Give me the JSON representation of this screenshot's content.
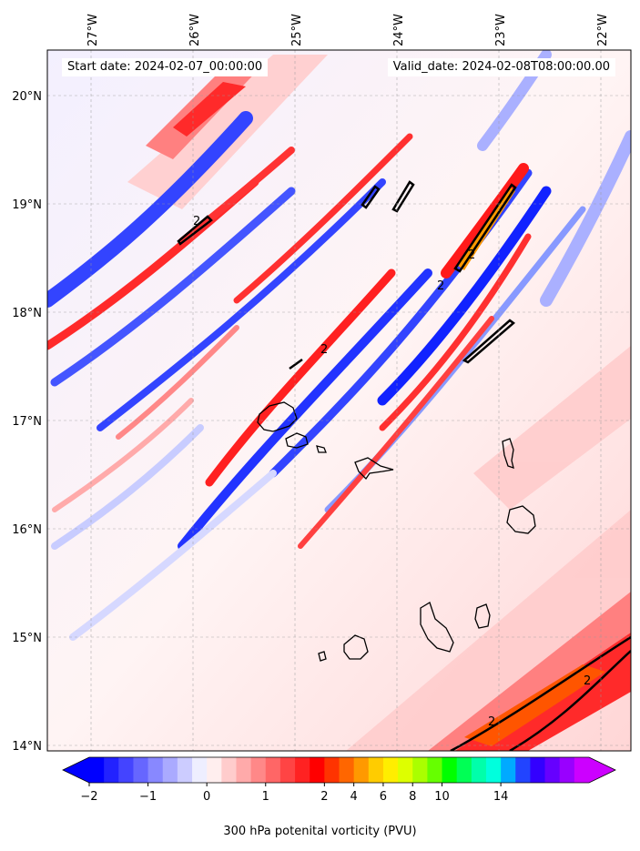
{
  "header": {
    "start": "Start date: 2024-02-07_00:00:00",
    "valid": "Valid_date: 2024-02-08T08:00:00.00"
  },
  "axes": {
    "lon_labels": [
      "27°W",
      "26°W",
      "25°W",
      "24°W",
      "23°W",
      "22°W"
    ],
    "lat_labels": [
      "20°N",
      "19°N",
      "18°N",
      "17°N",
      "16°N",
      "15°N",
      "14°N"
    ]
  },
  "colorbar": {
    "title": "300 hPa potenital vorticity (PVU)",
    "tick_labels": [
      "−2",
      "−1",
      "0",
      "1",
      "2",
      "4",
      "6",
      "8",
      "10",
      "14"
    ],
    "colors": [
      "#0000ff",
      "#2222ff",
      "#4444ff",
      "#6666ff",
      "#8888ff",
      "#aaaaff",
      "#ccccff",
      "#eeeeff",
      "#ffeeee",
      "#ffcccc",
      "#ffaaaa",
      "#ff8888",
      "#ff6666",
      "#ff4444",
      "#ff2222",
      "#ff0000",
      "#ff3300",
      "#ff6600",
      "#ff9900",
      "#ffcc00",
      "#ffee00",
      "#ddff00",
      "#aaff00",
      "#66ff00",
      "#00ff00",
      "#00ff55",
      "#00ffaa",
      "#00ffdd",
      "#00aaff",
      "#2244ff",
      "#3300ff",
      "#6600ff",
      "#9900ff",
      "#cc00ff"
    ],
    "under_color": "#0000ff",
    "over_color": "#cc00ff"
  },
  "contour_label": "2",
  "colors": {
    "pv_low": "#2233ff",
    "pv_mid": "#ff2020",
    "pv_high": "#ff9900",
    "background": "#fdeeee"
  }
}
